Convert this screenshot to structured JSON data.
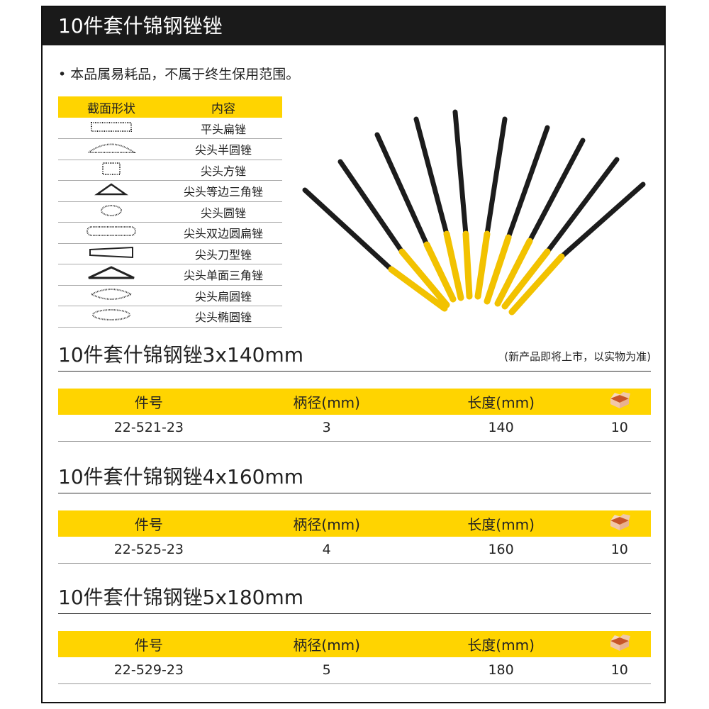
{
  "header": {
    "title": "10件套什锦钢锉锉"
  },
  "bullet": "• 本品属易耗品，不属于终生保用范围。",
  "cross_sections": {
    "headers": [
      "截面形状",
      "内容"
    ],
    "items": [
      {
        "shape": "flat-rect",
        "name": "平头扁锉"
      },
      {
        "shape": "half-round",
        "name": "尖头半圆锉"
      },
      {
        "shape": "square",
        "name": "尖头方锉"
      },
      {
        "shape": "equilateral-triangle",
        "name": "尖头等边三角锉"
      },
      {
        "shape": "round",
        "name": "尖头圆锉"
      },
      {
        "shape": "double-round-flat",
        "name": "尖头双边圆扁锉"
      },
      {
        "shape": "knife",
        "name": "尖头刀型锉"
      },
      {
        "shape": "single-triangle",
        "name": "尖头单面三角锉"
      },
      {
        "shape": "flat-round",
        "name": "尖头扁圆锉"
      },
      {
        "shape": "oval",
        "name": "尖头椭圆锉"
      }
    ]
  },
  "note": "(新产品即将上市，以实物为准)",
  "columns": [
    "件号",
    "柄径(mm)",
    "长度(mm)"
  ],
  "qty_icon": "carton-box-icon",
  "sections": [
    {
      "title": "10件套什锦钢锉3x140mm",
      "row": [
        "22-521-23",
        "3",
        "140",
        "10"
      ]
    },
    {
      "title": "10件套什锦钢锉4x160mm",
      "row": [
        "22-525-23",
        "4",
        "160",
        "10"
      ]
    },
    {
      "title": "10件套什锦钢锉5x180mm",
      "row": [
        "22-529-23",
        "5",
        "180",
        "10"
      ]
    }
  ],
  "colors": {
    "accent": "#ffd400",
    "header_bg": "#1a1a1a",
    "handle": "#f2c200"
  }
}
